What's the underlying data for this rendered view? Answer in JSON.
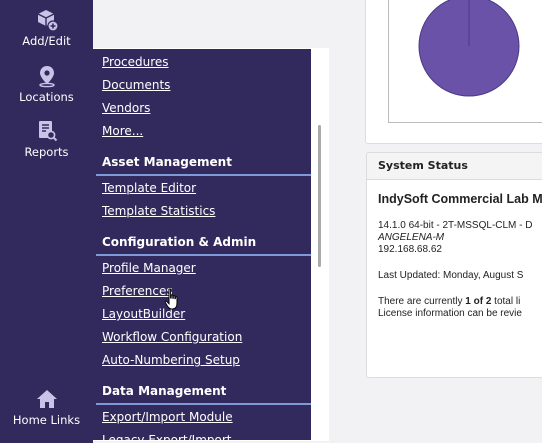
{
  "rail": {
    "add_edit": "Add/Edit",
    "locations": "Locations",
    "reports": "Reports",
    "home_links": "Home Links"
  },
  "menu": {
    "top_links": [
      "Procedures",
      "Documents",
      "Vendors",
      "More..."
    ],
    "asset_heading": "Asset Management",
    "asset_links": [
      "Template Editor",
      "Template Statistics"
    ],
    "config_heading": "Configuration & Admin",
    "config_links": [
      "Profile Manager",
      "Preferences",
      "LayoutBuilder",
      "Workflow Configuration",
      "Auto-Numbering Setup"
    ],
    "data_heading": "Data Management",
    "data_links": [
      "Export/Import Module",
      "Legacy Export/Import"
    ]
  },
  "status": {
    "header": "System Status",
    "product": "IndySoft Commercial Lab M",
    "version": "14.1.0 64-bit - 2T-MSSQL-CLM - D",
    "host": "ANGELENA-M",
    "ip": "192.168.68.62",
    "last_updated": "Last Updated: Monday, August S",
    "license_prefix": "There are currently ",
    "license_count": "1 of 2",
    "license_suffix": " total li",
    "license_info": "License information can be revie"
  },
  "colors": {
    "nav_bg": "#322a5c",
    "rule": "#7f9ad6",
    "pie": "#6a52a8"
  },
  "chart_data": {
    "type": "pie",
    "values": [
      100
    ]
  }
}
